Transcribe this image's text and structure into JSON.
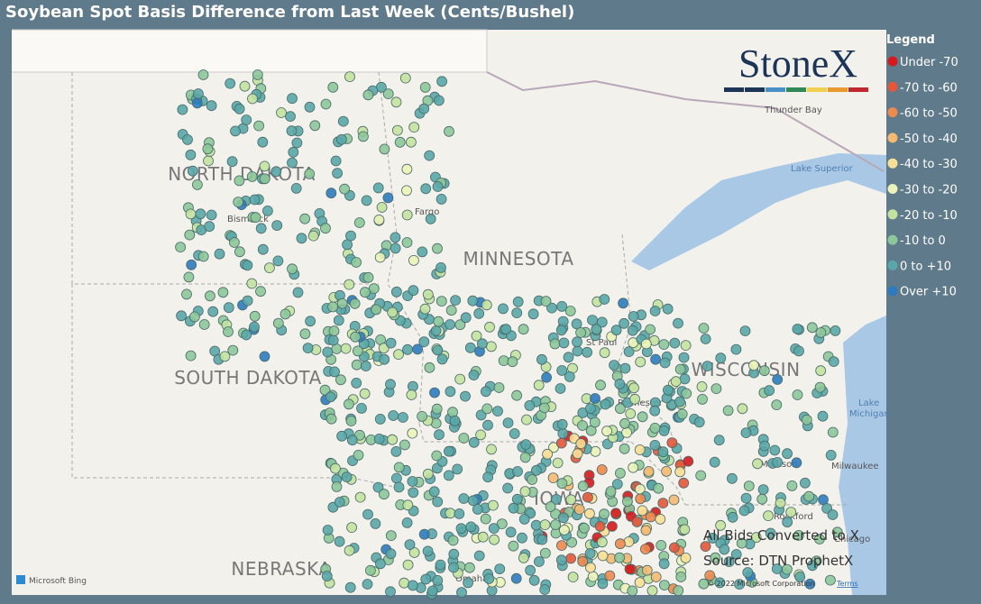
{
  "header": {
    "title": "Soybean Spot Basis Difference from Last Week (Cents/Bushel)"
  },
  "legend": {
    "title": "Legend",
    "items": [
      {
        "label": "Under -70",
        "color": "#d7191c"
      },
      {
        "label": "-70 to -60",
        "color": "#e4573b"
      },
      {
        "label": "-60 to -50",
        "color": "#ef8a4f"
      },
      {
        "label": "-50 to -40",
        "color": "#f5b971"
      },
      {
        "label": "-40 to -30",
        "color": "#f9df95"
      },
      {
        "label": "-30 to -20",
        "color": "#ecf3b8"
      },
      {
        "label": "-20 to -10",
        "color": "#c3e2a0"
      },
      {
        "label": "-10 to 0",
        "color": "#8dc799"
      },
      {
        "label": "0 to +10",
        "color": "#5aa7a9"
      },
      {
        "label": "Over +10",
        "color": "#2c7bbf"
      }
    ]
  },
  "logo": "StoneX",
  "map": {
    "states": [
      "NORTH DAKOTA",
      "MINNESOTA",
      "SOUTH DAKOTA",
      "WISCONSIN",
      "NEBRASKA",
      "IOWA"
    ],
    "cities": [
      "Bismarck",
      "Fargo",
      "St Paul",
      "Rochester",
      "Thunder Bay",
      "Madison",
      "Milwaukee",
      "Rockford",
      "Chicago",
      "Omaha"
    ],
    "water": [
      "Lake Superior",
      "Lake",
      "Michigan"
    ]
  },
  "notes": [
    "All Bids Converted to X",
    "Source: DTN ProphetX"
  ],
  "attribution": {
    "provider": "Microsoft Bing",
    "copyright": "© 2022 Microsoft Corporation",
    "terms": "Terms"
  }
}
